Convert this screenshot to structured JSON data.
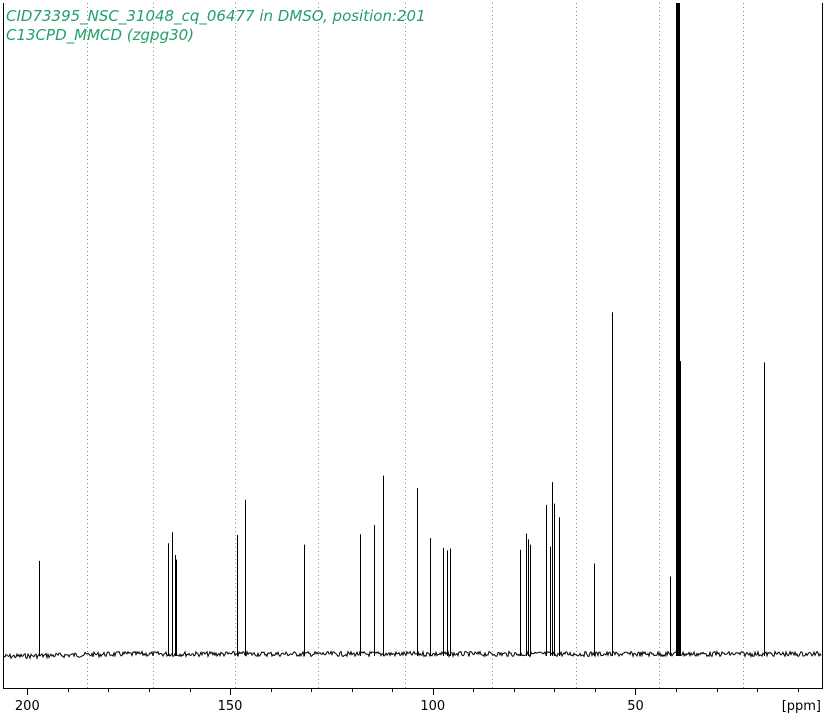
{
  "header": {
    "title_line1": "CID73395_NSC_31048_cq_06477 in DMSO, position:201",
    "title_line2": "C13CPD_MMCD (zgpg30)"
  },
  "chart_data": {
    "type": "line",
    "title": "CID73395_NSC_31048_cq_06477 in DMSO, position:201",
    "subtitle": "C13CPD_MMCD (zgpg30)",
    "xlabel": "[ppm]",
    "ylabel": "",
    "xlim": [
      206,
      4
    ],
    "ylim": [
      0,
      100
    ],
    "x_ticks": [
      200,
      150,
      100,
      50
    ],
    "x_tick_labels": [
      "200",
      "150",
      "100",
      "50"
    ],
    "grid": "vertical dotted",
    "grid_x": [
      185.3,
      169.1,
      148.8,
      128.4,
      106.9,
      85.5,
      64.7,
      44.2,
      23.6
    ],
    "series": [
      {
        "peaks_ppm": [
          197.2,
          165.4,
          164.3,
          163.5,
          163.3,
          148.3,
          146.3,
          131.8,
          118.0,
          114.6,
          112.3,
          103.8,
          100.6,
          97.6,
          96.6,
          95.8,
          78.4,
          77.1,
          76.6,
          76.1,
          72.0,
          71.2,
          70.5,
          70.0,
          68.9,
          60.2,
          55.9,
          41.4,
          40.1,
          39.9,
          39.7,
          39.5,
          39.3,
          39.1,
          18.4
        ],
        "intensities": [
          14.3,
          17.0,
          18.7,
          15.2,
          14.5,
          18.3,
          23.7,
          16.8,
          18.4,
          19.8,
          27.4,
          25.5,
          17.8,
          16.3,
          15.9,
          16.2,
          16.0,
          18.5,
          17.6,
          16.8,
          22.9,
          16.5,
          26.4,
          23.1,
          21.0,
          13.9,
          52.5,
          11.9,
          45.0,
          100.0,
          100.0,
          100.0,
          100.0,
          45.0,
          44.8
        ]
      }
    ],
    "colors": {
      "title": "#22a068",
      "spectrum": "#000000",
      "grid": "#909090",
      "axis": "#000000"
    }
  }
}
